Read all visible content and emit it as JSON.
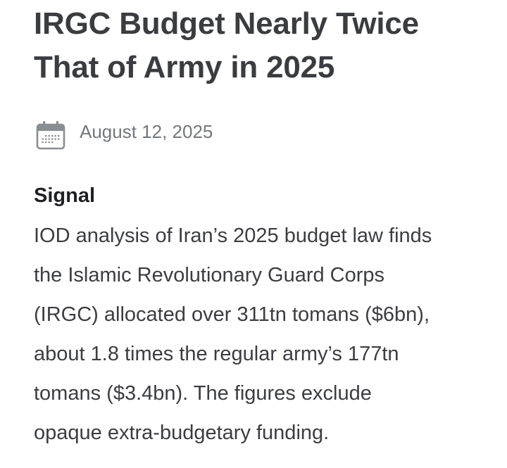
{
  "article": {
    "title_lines": [
      "IRGC Budget Nearly Twice",
      "That of Army in 2025"
    ],
    "date": "August 12, 2025",
    "date_icon": "calendar-icon",
    "section_label": "Signal",
    "body_lines": [
      "IOD analysis of Iran’s 2025 budget law finds",
      "the Islamic Revolutionary Guard Corps",
      "(IRGC) allocated over 311tn tomans ($6bn),",
      "about 1.8 times the regular army’s 177tn",
      "tomans ($3.4bn). The figures exclude",
      "opaque extra-budgetary funding."
    ]
  },
  "colors": {
    "title": "#3b3c40",
    "date": "#74777c",
    "icon": "#8a8d92",
    "signal": "#1f2023",
    "body": "#3c3d41",
    "background": "#ffffff"
  }
}
